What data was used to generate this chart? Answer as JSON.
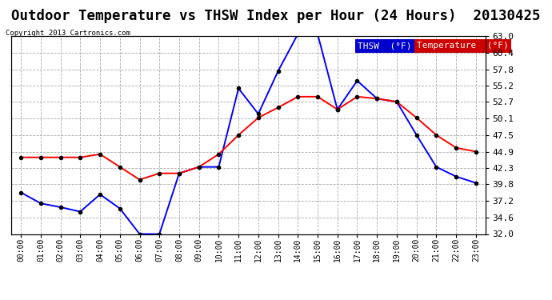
{
  "title": "Outdoor Temperature vs THSW Index per Hour (24 Hours)  20130425",
  "copyright": "Copyright 2013 Cartronics.com",
  "hours": [
    "00:00",
    "01:00",
    "02:00",
    "03:00",
    "04:00",
    "05:00",
    "06:00",
    "07:00",
    "08:00",
    "09:00",
    "10:00",
    "11:00",
    "12:00",
    "13:00",
    "14:00",
    "15:00",
    "16:00",
    "17:00",
    "18:00",
    "19:00",
    "20:00",
    "21:00",
    "22:00",
    "23:00"
  ],
  "thsw": [
    38.5,
    36.8,
    36.2,
    35.5,
    38.2,
    36.0,
    32.0,
    32.0,
    41.5,
    42.5,
    42.5,
    54.8,
    50.8,
    57.5,
    63.3,
    63.3,
    51.5,
    56.0,
    53.2,
    52.7,
    47.5,
    42.5,
    41.0,
    40.0
  ],
  "temperature": [
    44.0,
    44.0,
    44.0,
    44.0,
    44.5,
    42.5,
    40.5,
    41.5,
    41.5,
    42.5,
    44.5,
    47.5,
    50.2,
    51.8,
    53.5,
    53.5,
    51.5,
    53.5,
    53.2,
    52.7,
    50.2,
    47.5,
    45.5,
    44.9
  ],
  "ylim": [
    32.0,
    63.0
  ],
  "yticks": [
    32.0,
    34.6,
    37.2,
    39.8,
    42.3,
    44.9,
    47.5,
    50.1,
    52.7,
    55.2,
    57.8,
    60.4,
    63.0
  ],
  "thsw_color": "#0000ff",
  "temp_color": "#ff0000",
  "background_color": "#ffffff",
  "grid_color": "#aaaaaa",
  "legend_thsw_bg": "#0000cc",
  "legend_temp_bg": "#cc0000",
  "title_fontsize": 12.5
}
